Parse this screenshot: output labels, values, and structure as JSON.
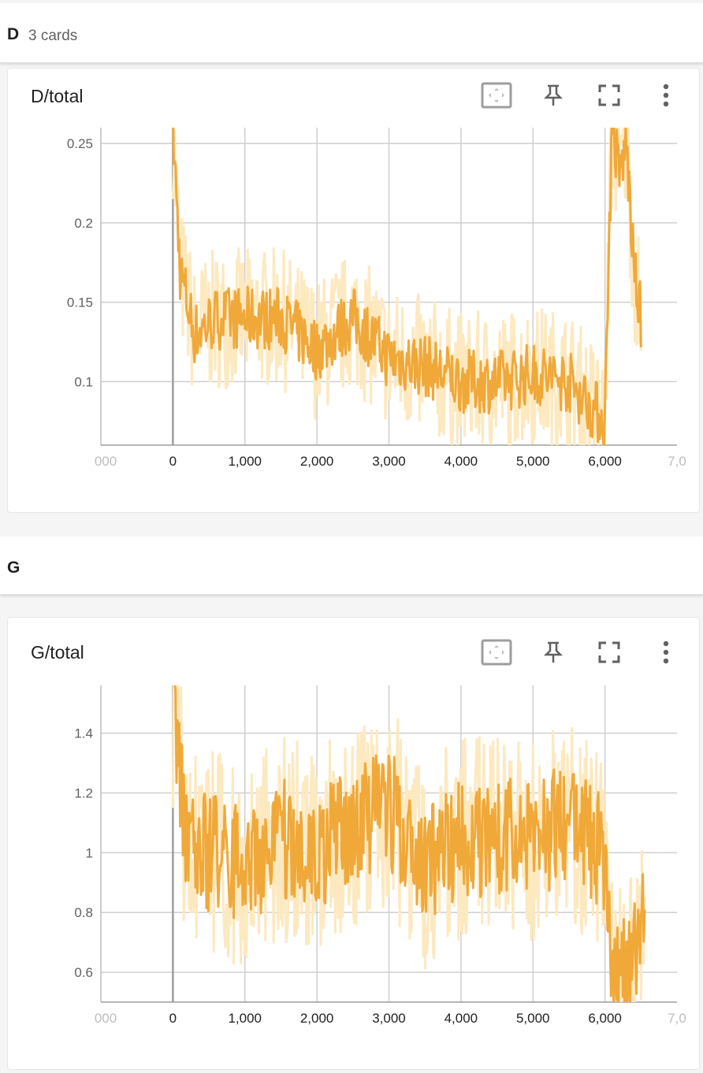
{
  "groups": [
    {
      "name": "D",
      "count": "3 cards"
    },
    {
      "name": "G",
      "count": ""
    }
  ],
  "cards": [
    {
      "title": "D/total"
    },
    {
      "title": "G/total"
    }
  ],
  "toolbar": {
    "fit_icon": "fit-domain-icon",
    "pin_icon": "pin-icon",
    "fullscreen_icon": "fullscreen-icon",
    "more_icon": "more-vert-icon"
  },
  "colors": {
    "smoothed": "#f0a839",
    "raw": "#fde9c0",
    "grid": "#cfcfcf",
    "zero_axis": "#9e9e9e"
  },
  "chart_data": [
    {
      "type": "line",
      "title": "D/total",
      "xlim": [
        -1000,
        7000
      ],
      "ylim": [
        0.06,
        0.26
      ],
      "x_ticks": [
        "000",
        "0",
        "1,000",
        "2,000",
        "3,000",
        "4,000",
        "5,000",
        "6,000",
        "7,0"
      ],
      "x_tick_values": [
        -1000,
        0,
        1000,
        2000,
        3000,
        4000,
        5000,
        6000,
        7000
      ],
      "y_ticks": [
        "0.1",
        "0.15",
        "0.2",
        "0.25"
      ],
      "y_tick_values": [
        0.1,
        0.15,
        0.2,
        0.25
      ],
      "grid": true,
      "series_x_start": 0,
      "series_x_end": 6500,
      "series_segments": [
        {
          "x": [
            0,
            100,
            300,
            600,
            1000,
            1500,
            2000,
            2500,
            3000,
            3500,
            4000,
            4500,
            5000,
            5500,
            6000,
            6050,
            6100,
            6200,
            6300,
            6400,
            6500
          ],
          "y": [
            0.26,
            0.17,
            0.13,
            0.14,
            0.14,
            0.14,
            0.12,
            0.14,
            0.115,
            0.11,
            0.1,
            0.1,
            0.105,
            0.1,
            0.075,
            0.18,
            0.26,
            0.23,
            0.25,
            0.17,
            0.14
          ]
        }
      ],
      "noise_smoothed": 0.02,
      "noise_raw": 0.045,
      "seed": 7
    },
    {
      "type": "line",
      "title": "G/total",
      "xlim": [
        -1000,
        7000
      ],
      "ylim": [
        0.5,
        1.56
      ],
      "x_ticks": [
        "000",
        "0",
        "1,000",
        "2,000",
        "3,000",
        "4,000",
        "5,000",
        "6,000",
        "7,0"
      ],
      "x_tick_values": [
        -1000,
        0,
        1000,
        2000,
        3000,
        4000,
        5000,
        6000,
        7000
      ],
      "y_ticks": [
        "0.6",
        "0.8",
        "1",
        "1.2",
        "1.4"
      ],
      "y_tick_values": [
        0.6,
        0.8,
        1.0,
        1.2,
        1.4
      ],
      "grid": true,
      "series_x_start": 0,
      "series_x_end": 6550,
      "series_segments": [
        {
          "x": [
            0,
            200,
            500,
            1000,
            1500,
            2000,
            2500,
            3000,
            3500,
            4000,
            4500,
            5000,
            5500,
            6000,
            6100,
            6300,
            6550
          ],
          "y": [
            1.5,
            1.0,
            1.0,
            0.95,
            1.05,
            1.0,
            1.1,
            1.15,
            0.95,
            1.05,
            1.05,
            1.05,
            1.1,
            1.0,
            0.55,
            0.6,
            0.75
          ]
        }
      ],
      "noise_smoothed": 0.2,
      "noise_raw": 0.35,
      "seed": 13
    }
  ]
}
